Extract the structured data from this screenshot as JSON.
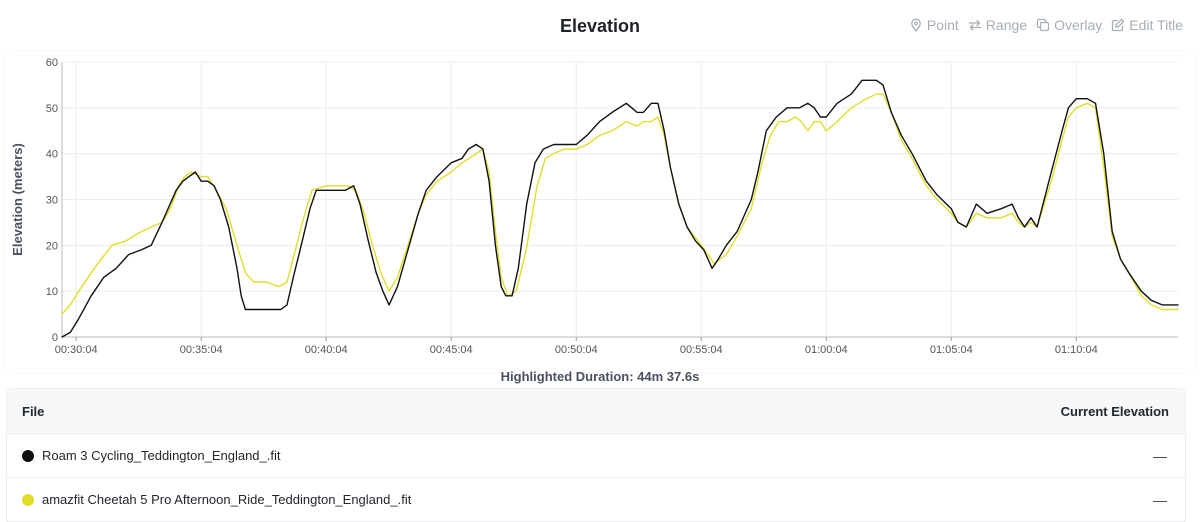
{
  "header": {
    "title": "Elevation",
    "tools": [
      {
        "label": "Point",
        "icon": "map-pin-icon"
      },
      {
        "label": "Range",
        "icon": "arrows-swap-icon"
      },
      {
        "label": "Overlay",
        "icon": "copy-icon"
      },
      {
        "label": "Edit Title",
        "icon": "edit-icon"
      }
    ]
  },
  "duration_text": "Highlighted Duration: 44m 37.6s",
  "table": {
    "col_file": "File",
    "col_elevation": "Current Elevation",
    "rows": [
      {
        "file": "Roam 3 Cycling_Teddington_England_.fit",
        "color": "#111111",
        "elevation": "—"
      },
      {
        "file": "amazfit Cheetah 5 Pro Afternoon_Ride_Teddington_England_.fit",
        "color": "#e2dd2a",
        "elevation": "—"
      }
    ]
  },
  "chart_data": {
    "type": "line",
    "title": "",
    "xlabel": "",
    "ylabel": "Elevation (meters)",
    "ylim": [
      0,
      60
    ],
    "yticks": [
      "0",
      "10",
      "20",
      "30",
      "40",
      "50",
      "60"
    ],
    "x_start": "00:29:30",
    "x_end": "01:14:08",
    "xticks": [
      "00:30:04",
      "00:35:04",
      "00:40:04",
      "00:45:04",
      "00:50:04",
      "00:55:04",
      "01:00:04",
      "01:05:04",
      "01:10:04"
    ],
    "grid": true,
    "series": [
      {
        "name": "Roam 3 Cycling_Teddington_England_.fit",
        "color": "#111111",
        "points": [
          [
            "00:29:30",
            0
          ],
          [
            "00:29:50",
            1
          ],
          [
            "00:30:10",
            4
          ],
          [
            "00:30:40",
            9
          ],
          [
            "00:31:10",
            13
          ],
          [
            "00:31:40",
            15
          ],
          [
            "00:32:10",
            18
          ],
          [
            "00:32:40",
            19
          ],
          [
            "00:33:04",
            20
          ],
          [
            "00:33:30",
            25
          ],
          [
            "00:34:04",
            32
          ],
          [
            "00:34:20",
            34
          ],
          [
            "00:34:35",
            35
          ],
          [
            "00:34:50",
            36
          ],
          [
            "00:35:04",
            34
          ],
          [
            "00:35:20",
            34
          ],
          [
            "00:35:35",
            33
          ],
          [
            "00:35:50",
            30
          ],
          [
            "00:36:10",
            24
          ],
          [
            "00:36:30",
            15
          ],
          [
            "00:36:40",
            9
          ],
          [
            "00:36:50",
            6
          ],
          [
            "00:37:20",
            6
          ],
          [
            "00:37:50",
            6
          ],
          [
            "00:38:15",
            6
          ],
          [
            "00:38:30",
            7
          ],
          [
            "00:38:45",
            13
          ],
          [
            "00:39:04",
            20
          ],
          [
            "00:39:25",
            28
          ],
          [
            "00:39:40",
            32
          ],
          [
            "00:40:04",
            32
          ],
          [
            "00:40:30",
            32
          ],
          [
            "00:40:50",
            32
          ],
          [
            "00:41:10",
            33
          ],
          [
            "00:41:25",
            29
          ],
          [
            "00:41:45",
            21
          ],
          [
            "00:42:04",
            14
          ],
          [
            "00:42:20",
            10
          ],
          [
            "00:42:35",
            7
          ],
          [
            "00:42:55",
            11
          ],
          [
            "00:43:20",
            19
          ],
          [
            "00:43:45",
            27
          ],
          [
            "00:44:04",
            32
          ],
          [
            "00:44:30",
            35
          ],
          [
            "00:45:04",
            38
          ],
          [
            "00:45:30",
            39
          ],
          [
            "00:45:45",
            41
          ],
          [
            "00:46:04",
            42
          ],
          [
            "00:46:20",
            41
          ],
          [
            "00:46:35",
            34
          ],
          [
            "00:46:50",
            20
          ],
          [
            "00:47:04",
            11
          ],
          [
            "00:47:15",
            9
          ],
          [
            "00:47:30",
            9
          ],
          [
            "00:47:45",
            15
          ],
          [
            "00:48:05",
            29
          ],
          [
            "00:48:25",
            38
          ],
          [
            "00:48:45",
            41
          ],
          [
            "00:49:10",
            42
          ],
          [
            "00:49:35",
            42
          ],
          [
            "00:50:04",
            42
          ],
          [
            "00:50:30",
            44
          ],
          [
            "00:51:00",
            47
          ],
          [
            "00:51:30",
            49
          ],
          [
            "00:52:04",
            51
          ],
          [
            "00:52:30",
            49
          ],
          [
            "00:52:45",
            49
          ],
          [
            "00:53:04",
            51
          ],
          [
            "00:53:20",
            51
          ],
          [
            "00:53:35",
            45
          ],
          [
            "00:53:50",
            37
          ],
          [
            "00:54:10",
            29
          ],
          [
            "00:54:30",
            24
          ],
          [
            "00:54:50",
            21
          ],
          [
            "00:55:10",
            19
          ],
          [
            "00:55:30",
            15
          ],
          [
            "00:55:45",
            17
          ],
          [
            "00:56:04",
            20
          ],
          [
            "00:56:30",
            23
          ],
          [
            "00:57:04",
            30
          ],
          [
            "00:57:20",
            36
          ],
          [
            "00:57:40",
            45
          ],
          [
            "00:58:04",
            48
          ],
          [
            "00:58:30",
            50
          ],
          [
            "00:59:00",
            50
          ],
          [
            "00:59:20",
            51
          ],
          [
            "00:59:35",
            50
          ],
          [
            "00:59:50",
            48
          ],
          [
            "01:00:04",
            48
          ],
          [
            "01:00:30",
            51
          ],
          [
            "01:01:04",
            53
          ],
          [
            "01:01:30",
            56
          ],
          [
            "01:02:04",
            56
          ],
          [
            "01:02:20",
            55
          ],
          [
            "01:02:40",
            49
          ],
          [
            "01:03:04",
            44
          ],
          [
            "01:03:30",
            40
          ],
          [
            "01:04:04",
            34
          ],
          [
            "01:04:30",
            31
          ],
          [
            "01:05:04",
            28
          ],
          [
            "01:05:20",
            25
          ],
          [
            "01:05:40",
            24
          ],
          [
            "01:06:04",
            29
          ],
          [
            "01:06:30",
            27
          ],
          [
            "01:07:04",
            28
          ],
          [
            "01:07:30",
            29
          ],
          [
            "01:07:45",
            26
          ],
          [
            "01:08:00",
            24
          ],
          [
            "01:08:15",
            26
          ],
          [
            "01:08:30",
            24
          ],
          [
            "01:09:04",
            36
          ],
          [
            "01:09:30",
            45
          ],
          [
            "01:09:45",
            50
          ],
          [
            "01:10:04",
            52
          ],
          [
            "01:10:30",
            52
          ],
          [
            "01:10:50",
            51
          ],
          [
            "01:11:10",
            40
          ],
          [
            "01:11:30",
            23
          ],
          [
            "01:11:50",
            17
          ],
          [
            "01:12:10",
            14
          ],
          [
            "01:12:40",
            10
          ],
          [
            "01:13:04",
            8
          ],
          [
            "01:13:30",
            7
          ],
          [
            "01:13:50",
            7
          ],
          [
            "01:14:08",
            7
          ]
        ]
      },
      {
        "name": "amazfit Cheetah 5 Pro Afternoon_Ride_Teddington_England_.fit",
        "color": "#e2dd2a",
        "points": [
          [
            "00:29:30",
            5
          ],
          [
            "00:29:50",
            7
          ],
          [
            "00:30:10",
            10
          ],
          [
            "00:30:40",
            14
          ],
          [
            "00:31:04",
            17
          ],
          [
            "00:31:30",
            20
          ],
          [
            "00:32:04",
            21
          ],
          [
            "00:32:40",
            23
          ],
          [
            "00:33:04",
            24
          ],
          [
            "00:33:30",
            25
          ],
          [
            "00:33:50",
            28
          ],
          [
            "00:34:10",
            33
          ],
          [
            "00:34:25",
            35
          ],
          [
            "00:34:40",
            36
          ],
          [
            "00:35:04",
            35
          ],
          [
            "00:35:20",
            35
          ],
          [
            "00:35:40",
            32
          ],
          [
            "00:36:04",
            28
          ],
          [
            "00:36:30",
            20
          ],
          [
            "00:36:50",
            14
          ],
          [
            "00:37:10",
            12
          ],
          [
            "00:37:40",
            12
          ],
          [
            "00:38:10",
            11
          ],
          [
            "00:38:30",
            12
          ],
          [
            "00:38:50",
            19
          ],
          [
            "00:39:10",
            26
          ],
          [
            "00:39:30",
            32
          ],
          [
            "00:40:04",
            33
          ],
          [
            "00:40:30",
            33
          ],
          [
            "00:40:55",
            33
          ],
          [
            "00:41:15",
            32
          ],
          [
            "00:41:35",
            27
          ],
          [
            "00:41:55",
            20
          ],
          [
            "00:42:15",
            14
          ],
          [
            "00:42:35",
            10
          ],
          [
            "00:42:55",
            13
          ],
          [
            "00:43:20",
            20
          ],
          [
            "00:43:45",
            27
          ],
          [
            "00:44:04",
            31
          ],
          [
            "00:44:30",
            34
          ],
          [
            "00:45:04",
            36
          ],
          [
            "00:45:30",
            38
          ],
          [
            "00:46:04",
            40
          ],
          [
            "00:46:20",
            41
          ],
          [
            "00:46:35",
            36
          ],
          [
            "00:46:50",
            23
          ],
          [
            "00:47:04",
            13
          ],
          [
            "00:47:20",
            9
          ],
          [
            "00:47:40",
            10
          ],
          [
            "00:48:04",
            19
          ],
          [
            "00:48:30",
            33
          ],
          [
            "00:48:50",
            39
          ],
          [
            "00:49:10",
            40
          ],
          [
            "00:49:35",
            41
          ],
          [
            "00:50:04",
            41
          ],
          [
            "00:50:30",
            42
          ],
          [
            "00:51:00",
            44
          ],
          [
            "00:51:30",
            45
          ],
          [
            "00:52:04",
            47
          ],
          [
            "00:52:30",
            46
          ],
          [
            "00:52:45",
            47
          ],
          [
            "00:53:04",
            47
          ],
          [
            "00:53:20",
            48
          ],
          [
            "00:53:35",
            44
          ],
          [
            "00:53:50",
            37
          ],
          [
            "00:54:10",
            29
          ],
          [
            "00:54:30",
            24
          ],
          [
            "00:55:04",
            20
          ],
          [
            "00:55:20",
            18
          ],
          [
            "00:55:35",
            16
          ],
          [
            "00:56:04",
            18
          ],
          [
            "00:56:30",
            22
          ],
          [
            "00:57:04",
            28
          ],
          [
            "00:57:30",
            38
          ],
          [
            "00:57:50",
            44
          ],
          [
            "00:58:10",
            47
          ],
          [
            "00:58:30",
            47
          ],
          [
            "00:58:50",
            48
          ],
          [
            "00:59:04",
            47
          ],
          [
            "00:59:20",
            45
          ],
          [
            "00:59:35",
            47
          ],
          [
            "00:59:50",
            47
          ],
          [
            "01:00:04",
            45
          ],
          [
            "01:00:30",
            47
          ],
          [
            "01:01:04",
            50
          ],
          [
            "01:01:40",
            52
          ],
          [
            "01:02:04",
            53
          ],
          [
            "01:02:20",
            53
          ],
          [
            "01:02:40",
            49
          ],
          [
            "01:03:04",
            43
          ],
          [
            "01:03:30",
            39
          ],
          [
            "01:04:04",
            33
          ],
          [
            "01:04:30",
            30
          ],
          [
            "01:05:04",
            27
          ],
          [
            "01:05:20",
            25
          ],
          [
            "01:05:40",
            24
          ],
          [
            "01:06:04",
            27
          ],
          [
            "01:06:30",
            26
          ],
          [
            "01:07:04",
            26
          ],
          [
            "01:07:30",
            27
          ],
          [
            "01:07:45",
            25
          ],
          [
            "01:08:00",
            24
          ],
          [
            "01:08:15",
            25
          ],
          [
            "01:08:30",
            24
          ],
          [
            "01:09:04",
            34
          ],
          [
            "01:09:30",
            43
          ],
          [
            "01:09:45",
            48
          ],
          [
            "01:10:04",
            50
          ],
          [
            "01:10:30",
            51
          ],
          [
            "01:10:50",
            50
          ],
          [
            "01:11:10",
            37
          ],
          [
            "01:11:30",
            22
          ],
          [
            "01:11:50",
            17
          ],
          [
            "01:12:10",
            14
          ],
          [
            "01:12:40",
            9
          ],
          [
            "01:13:04",
            7
          ],
          [
            "01:13:30",
            6
          ],
          [
            "01:13:50",
            6
          ],
          [
            "01:14:08",
            6
          ]
        ]
      }
    ]
  }
}
